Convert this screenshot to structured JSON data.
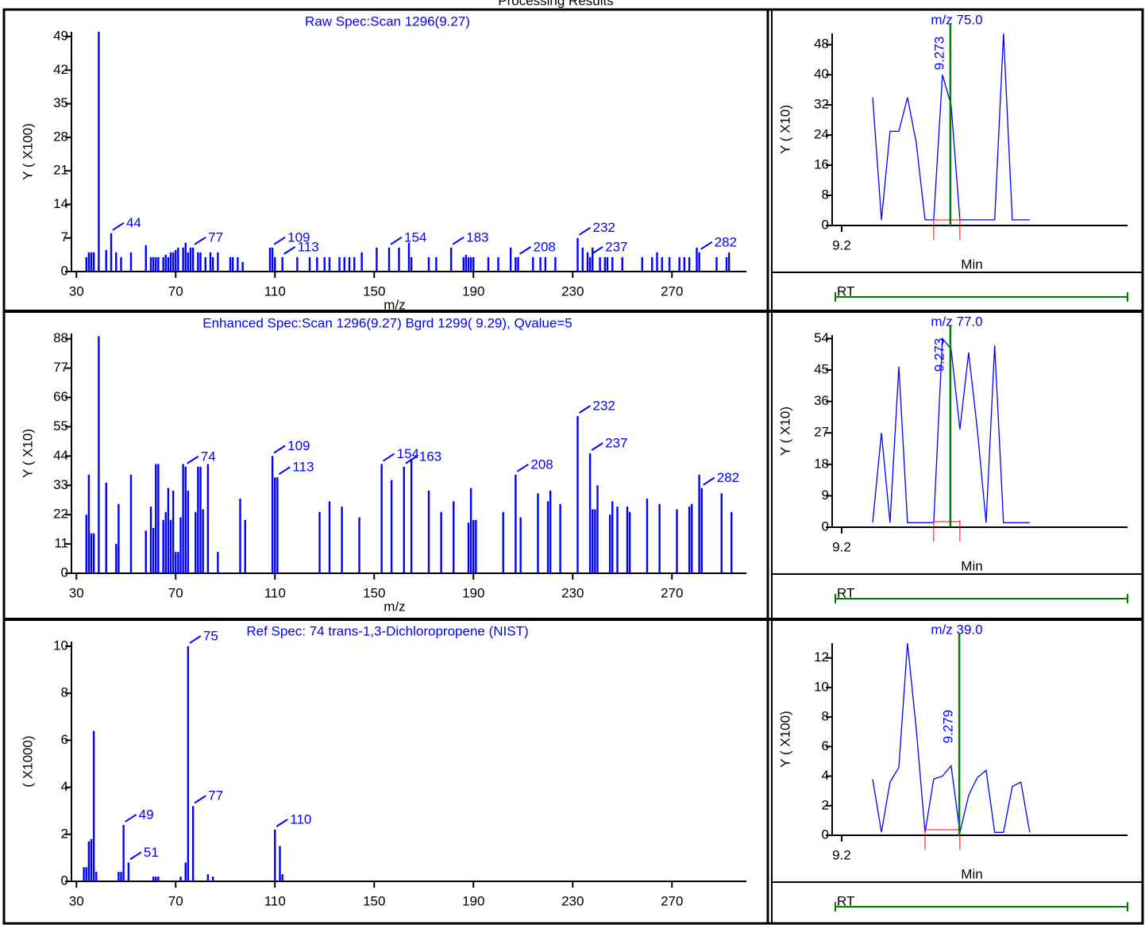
{
  "title": "Processing Results",
  "chart_data": [
    {
      "type": "bar",
      "title": "Raw Spec:Scan 1296(9.27)",
      "y_label": "Y ( X100)",
      "x_label": "m/z",
      "color": "#0000ff",
      "x": [
        34,
        35,
        36,
        37,
        39,
        42,
        44,
        46,
        48,
        52,
        58,
        60,
        61,
        62,
        63,
        65,
        66,
        67,
        68,
        69,
        70,
        71,
        73,
        74,
        75,
        76,
        77,
        79,
        80,
        82,
        84,
        85,
        87,
        92,
        93,
        95,
        97,
        108,
        109,
        110,
        113,
        119,
        124,
        127,
        130,
        132,
        136,
        138,
        140,
        142,
        145,
        151,
        156,
        160,
        164,
        165,
        172,
        175,
        181,
        186,
        187,
        188,
        189,
        190,
        196,
        200,
        205,
        207,
        208,
        214,
        217,
        219,
        223,
        232,
        234,
        236,
        237,
        238,
        241,
        243,
        244,
        246,
        250,
        258,
        262,
        264,
        266,
        269,
        273,
        275,
        277,
        280,
        281,
        288,
        292,
        293
      ],
      "values": [
        3,
        4,
        4,
        4,
        50,
        4.5,
        8,
        4,
        3,
        4,
        5.5,
        3,
        3,
        3,
        3,
        3,
        3.5,
        3,
        4,
        4,
        4.5,
        5,
        5,
        6,
        4,
        5,
        5,
        4,
        4,
        3,
        4,
        3,
        4,
        3,
        3,
        3,
        2,
        5,
        5,
        3,
        3,
        3,
        3,
        3,
        3,
        3,
        3,
        3,
        3,
        3,
        4,
        5,
        5,
        5,
        6,
        3,
        3,
        3,
        5,
        3,
        3.5,
        3,
        3,
        3,
        3,
        3,
        5,
        3,
        3,
        3,
        3,
        3,
        3,
        7,
        5,
        4,
        3,
        5,
        3,
        3,
        3,
        3,
        3,
        3,
        3,
        4,
        3,
        3,
        3,
        3,
        3,
        5,
        4,
        3,
        3,
        4
      ],
      "peak_labels": [
        44,
        77,
        109,
        113,
        154,
        183,
        208,
        232,
        237,
        282
      ],
      "xlim": [
        28,
        300
      ],
      "ylim": [
        0,
        50
      ],
      "xticks": [
        30,
        70,
        110,
        150,
        190,
        230,
        270
      ],
      "yticks": [
        0,
        7,
        14,
        21,
        28,
        35,
        42,
        49
      ]
    },
    {
      "type": "line",
      "title": "m/z   75.0",
      "y_label": "Y ( X10)",
      "x_label": "Min",
      "color": "#0000ff",
      "x": [
        9.2208,
        9.2267,
        9.2325,
        9.2384,
        9.2442,
        9.2501,
        9.256,
        9.2618,
        9.2677,
        9.2735,
        9.2794,
        9.2853,
        9.2911,
        9.297,
        9.3028,
        9.3087,
        9.3146,
        9.3204,
        9.3263
      ],
      "values": [
        34,
        1.5,
        25,
        25,
        34,
        22,
        1.5,
        1.5,
        40,
        32,
        1.5,
        1.5,
        1.5,
        1.5,
        1.5,
        51,
        1.5,
        1.5,
        1.5
      ],
      "retention_time": 9.273,
      "peak_start": 9.2618,
      "peak_end": 9.2794,
      "rt_strip": "RT",
      "xlim": [
        9.1936,
        9.392
      ],
      "ylim": [
        0,
        51
      ],
      "xticks": [
        9.2
      ],
      "yticks": [
        0,
        8,
        16,
        24,
        32,
        40,
        48
      ]
    },
    {
      "type": "bar",
      "title": "Enhanced Spec:Scan 1296(9.27) Bgrd 1299( 9.29), Qvalue=5",
      "y_label": "Y ( X10)",
      "x_label": "m/z",
      "color": "#0000ff",
      "x": [
        34,
        35,
        36,
        37,
        39,
        42,
        46,
        47,
        52,
        58,
        60,
        61,
        62,
        63,
        65,
        66,
        67,
        68,
        69,
        70,
        71,
        72,
        73,
        74,
        75,
        78,
        79,
        80,
        81,
        83,
        87,
        96,
        98,
        109,
        110,
        111,
        128,
        132,
        137,
        144,
        153,
        157,
        162,
        165,
        172,
        177,
        182,
        188,
        189,
        190,
        191,
        202,
        207,
        209,
        216,
        220,
        221,
        225,
        232,
        237,
        238,
        239,
        240,
        245,
        246,
        248,
        252,
        253,
        260,
        265,
        272,
        277,
        278,
        281,
        282,
        290,
        294
      ],
      "values": [
        22,
        37,
        15,
        15,
        89,
        34,
        11,
        26,
        37,
        16,
        25,
        17,
        41,
        41,
        20,
        23,
        32,
        20,
        31,
        8,
        8,
        21,
        41,
        40,
        31,
        23,
        40,
        40,
        24,
        41,
        8,
        28,
        20,
        44,
        36,
        36,
        23,
        27,
        25,
        21,
        41,
        35,
        40,
        43,
        31,
        23,
        27,
        19,
        32,
        20,
        20,
        23,
        37,
        21,
        30,
        27,
        31,
        26,
        59,
        45,
        24,
        24,
        33,
        22,
        27,
        25,
        25,
        23,
        28,
        26,
        24,
        25,
        26,
        37,
        32,
        30,
        23
      ],
      "peak_labels": [
        74,
        109,
        113,
        154,
        163,
        208,
        232,
        237,
        282
      ],
      "xlim": [
        28,
        300
      ],
      "ylim": [
        0,
        90
      ],
      "xticks": [
        30,
        70,
        110,
        150,
        190,
        230,
        270
      ],
      "yticks": [
        0,
        11,
        22,
        33,
        44,
        55,
        66,
        77,
        88
      ]
    },
    {
      "type": "line",
      "title": "m/z   77.0",
      "y_label": "Y ( X10)",
      "x_label": "Min",
      "color": "#0000ff",
      "x": [
        9.2208,
        9.2267,
        9.2325,
        9.2384,
        9.2442,
        9.2501,
        9.256,
        9.2618,
        9.2677,
        9.2735,
        9.2794,
        9.2853,
        9.2911,
        9.297,
        9.3028,
        9.3087,
        9.3146,
        9.3204,
        9.3263
      ],
      "values": [
        1.3,
        27,
        1.3,
        46,
        1.3,
        1.3,
        1.3,
        1.3,
        54,
        51,
        28,
        50,
        28,
        1.3,
        52,
        1.3,
        1.3,
        1.3,
        1.3
      ],
      "retention_time": 9.273,
      "peak_start": 9.2618,
      "peak_end": 9.2794,
      "rt_strip": "RT",
      "xlim": [
        9.1936,
        9.392
      ],
      "ylim": [
        0,
        55
      ],
      "xticks": [
        9.2
      ],
      "yticks": [
        0,
        9,
        18,
        27,
        36,
        45,
        54
      ]
    },
    {
      "type": "bar",
      "title": "Ref Spec:   74 trans-1,3-Dichloropropene   (NIST)",
      "y_label": "( X1000)",
      "color": "#0000ff",
      "x": [
        33,
        34,
        35,
        36,
        37,
        38,
        47,
        48,
        49,
        51,
        61,
        62,
        63,
        72,
        74,
        75,
        77,
        83,
        85,
        110,
        112,
        113
      ],
      "values": [
        0.6,
        0.6,
        1.7,
        1.8,
        6.4,
        0.4,
        0.4,
        0.4,
        2.4,
        0.8,
        0.2,
        0.2,
        0.2,
        0.2,
        0.8,
        10,
        3.2,
        0.3,
        0.2,
        2.2,
        1.5,
        0.3
      ],
      "peak_labels": [
        75,
        49,
        51,
        77,
        110
      ],
      "xlim": [
        28,
        300
      ],
      "ylim": [
        0,
        10.2
      ],
      "xticks": [
        30,
        70,
        110,
        150,
        190,
        230,
        270
      ],
      "yticks": [
        0,
        2,
        4,
        6,
        8,
        10
      ]
    },
    {
      "type": "line",
      "title": "m/z   39.0",
      "y_label": "Y ( X100)",
      "x_label": "Min",
      "color": "#0000ff",
      "x": [
        9.2208,
        9.2267,
        9.2325,
        9.2384,
        9.2442,
        9.2501,
        9.256,
        9.2618,
        9.2677,
        9.2735,
        9.2794,
        9.2853,
        9.2911,
        9.297,
        9.3028,
        9.3087,
        9.3146,
        9.3204,
        9.3263
      ],
      "values": [
        3.8,
        0.2,
        3.6,
        4.6,
        13,
        7.2,
        0.2,
        3.8,
        4,
        4.7,
        0.2,
        2.7,
        3.9,
        4.4,
        0.2,
        0.2,
        3.3,
        3.6,
        0.2
      ],
      "retention_time": 9.279,
      "peak_start": 9.256,
      "peak_end": 9.2794,
      "rt_strip": "RT",
      "xlim": [
        9.1936,
        9.392
      ],
      "ylim": [
        0,
        13
      ],
      "xticks": [
        9.2
      ],
      "yticks": [
        0,
        2,
        4,
        6,
        8,
        10,
        12
      ]
    }
  ]
}
